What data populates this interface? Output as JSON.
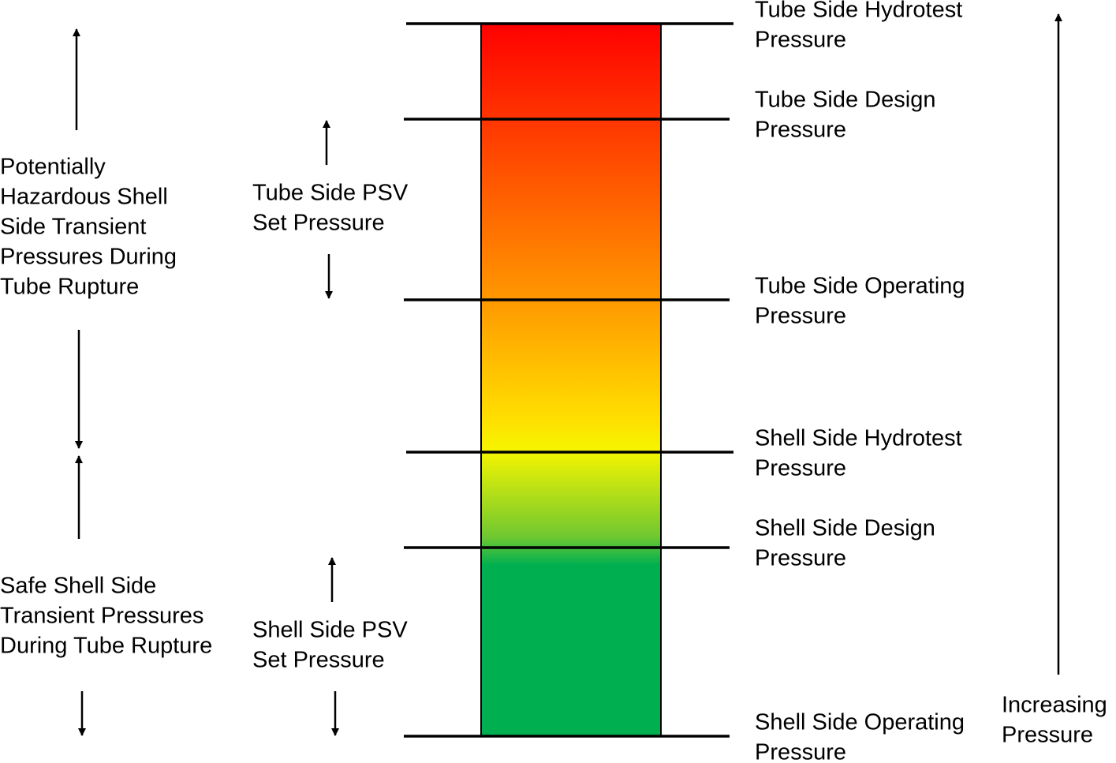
{
  "levels": [
    {
      "lines": [
        "Tube Side Hydrotest",
        "Pressure"
      ]
    },
    {
      "lines": [
        "Tube Side Design",
        "Pressure"
      ]
    },
    {
      "lines": [
        "Tube Side Operating",
        "Pressure"
      ]
    },
    {
      "lines": [
        "Shell Side Hydrotest",
        "Pressure"
      ]
    },
    {
      "lines": [
        "Shell Side Design",
        "Pressure"
      ]
    },
    {
      "lines": [
        "Shell Side Operating",
        "Pressure"
      ]
    }
  ],
  "left_labels": [
    {
      "lines": [
        "Potentially",
        "Hazardous Shell",
        "Side Transient",
        "Pressures During",
        "Tube Rupture"
      ]
    },
    {
      "lines": [
        "Safe Shell Side",
        "Transient Pressures",
        "During Tube Rupture"
      ]
    }
  ],
  "psv_labels": [
    {
      "lines": [
        "Tube Side PSV",
        "Set Pressure"
      ]
    },
    {
      "lines": [
        "Shell Side PSV",
        "Set Pressure"
      ]
    }
  ],
  "axis_label": {
    "lines": [
      "Increasing",
      "Pressure"
    ]
  }
}
